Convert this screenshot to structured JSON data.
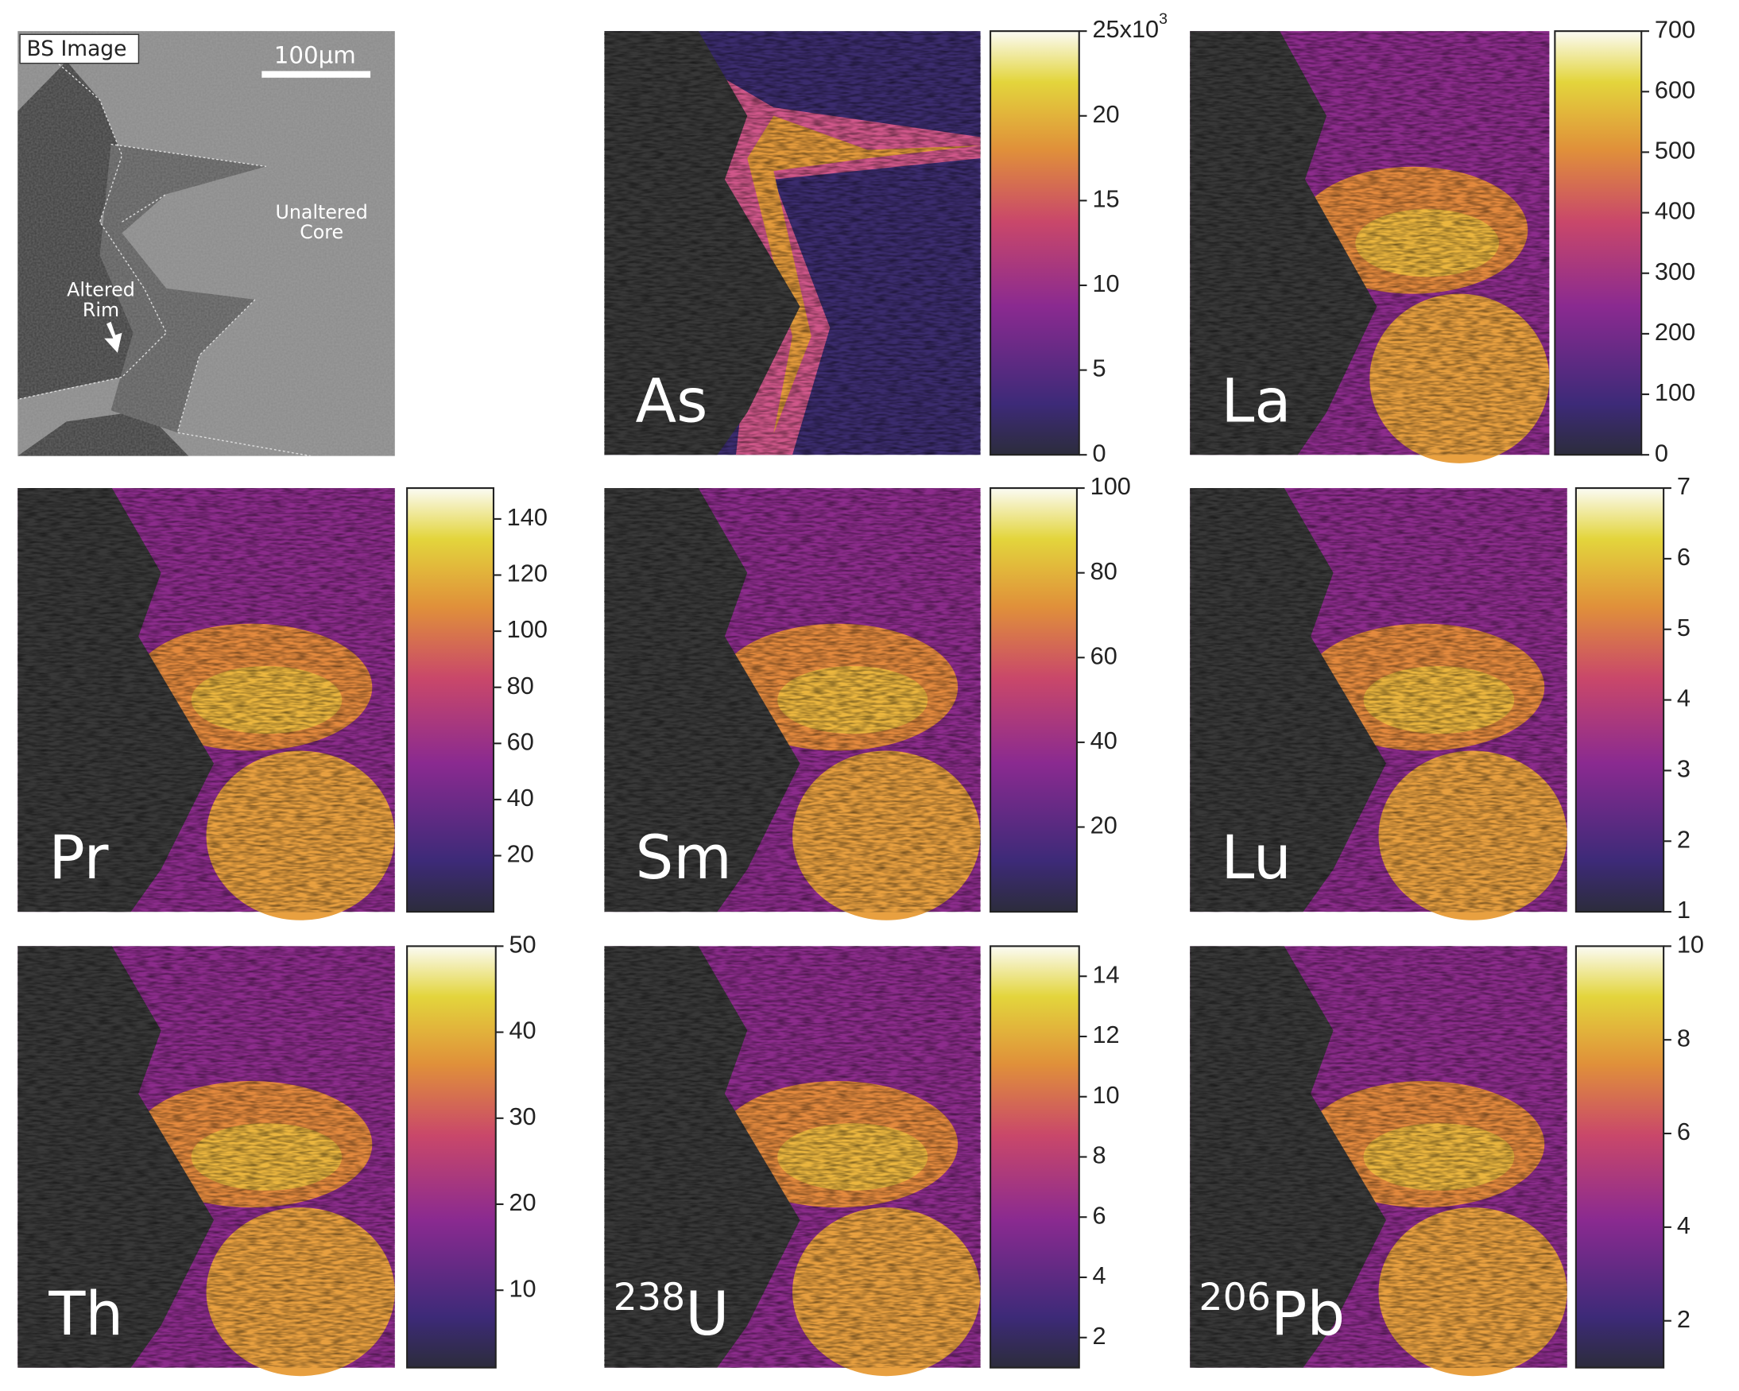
{
  "bs_image": {
    "label": "BS Image",
    "scale_bar": "100µm",
    "annotations": [
      {
        "lines": [
          "Unaltered",
          "Core"
        ]
      },
      {
        "lines": [
          "Altered",
          "Rim"
        ]
      }
    ]
  },
  "panels": [
    {
      "element": "As",
      "colorbar": {
        "lim": [
          0,
          25
        ],
        "ticks": [
          0,
          5,
          10,
          15,
          20,
          {
            "value": 25,
            "label": "25x10",
            "exponent": "3"
          }
        ]
      }
    },
    {
      "element": "La",
      "colorbar": {
        "lim": [
          0,
          700
        ],
        "ticks": [
          0,
          100,
          200,
          300,
          400,
          500,
          600,
          700
        ]
      }
    },
    {
      "element": "Pr",
      "colorbar": {
        "lim": [
          0,
          151
        ],
        "ticks": [
          20,
          40,
          60,
          80,
          100,
          120,
          140
        ]
      }
    },
    {
      "element": "Sm",
      "colorbar": {
        "lim": [
          0,
          100
        ],
        "ticks": [
          20,
          40,
          60,
          80,
          100
        ]
      }
    },
    {
      "element": "Lu",
      "colorbar": {
        "lim": [
          1,
          7
        ],
        "ticks": [
          1,
          2,
          3,
          4,
          5,
          6,
          7
        ]
      }
    },
    {
      "element": "Th",
      "colorbar": {
        "lim": [
          1,
          50
        ],
        "ticks": [
          10,
          20,
          30,
          40,
          50
        ]
      }
    },
    {
      "isotope": "238",
      "element": "U",
      "colorbar": {
        "lim": [
          1,
          15
        ],
        "ticks": [
          2,
          4,
          6,
          8,
          10,
          12,
          14
        ]
      }
    },
    {
      "isotope": "206",
      "element": "Pb",
      "colorbar": {
        "lim": [
          1,
          10
        ],
        "ticks": [
          2,
          4,
          6,
          8,
          10
        ]
      }
    }
  ]
}
